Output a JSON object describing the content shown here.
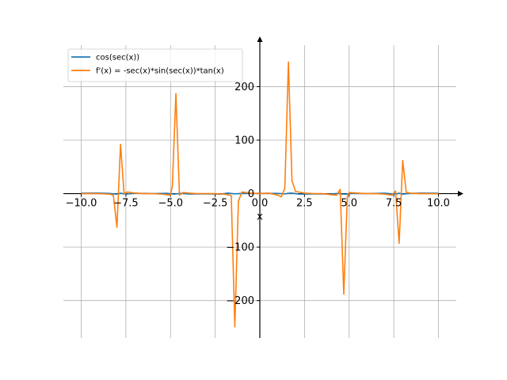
{
  "chart_data": {
    "type": "line",
    "title": "",
    "xlabel": "x",
    "ylabel": "",
    "xlim": [
      -11,
      11
    ],
    "ylim": [
      -270,
      285
    ],
    "grid": true,
    "legend_position": "top-left",
    "x_ticks": [
      -10,
      -7.5,
      -5,
      -2.5,
      0,
      2.5,
      5,
      7.5,
      10
    ],
    "x_tick_labels": [
      "−10.0",
      "−7.5",
      "−5.0",
      "−2.5",
      "0.0",
      "2.5",
      "5.0",
      "7.5",
      "10.0"
    ],
    "y_ticks": [
      -200,
      -100,
      0,
      100,
      200
    ],
    "y_tick_labels": [
      "−200",
      "−100",
      "0",
      "100",
      "200"
    ],
    "series": [
      {
        "name": "cos(sec(x))",
        "color": "#1f77b4",
        "x": [
          -10,
          -9,
          -8.4,
          -8.0,
          -7.8,
          -7.5,
          -7,
          -6,
          -5.2,
          -4.8,
          -4.4,
          -4,
          -3,
          -2.2,
          -1.8,
          -1.4,
          -1.0,
          0,
          1.0,
          1.4,
          1.6,
          1.8,
          2.2,
          3,
          4,
          4.4,
          4.6,
          4.8,
          5.2,
          6,
          7,
          7.6,
          7.8,
          8.0,
          8.4,
          9,
          10
        ],
        "y": [
          0.8,
          0.9,
          0.3,
          -0.9,
          0.7,
          -0.9,
          0.8,
          0.1,
          0.5,
          -0.9,
          0.6,
          -0.7,
          -0.6,
          -0.9,
          0.9,
          -0.4,
          0.3,
          0.5,
          0.3,
          -0.4,
          0.6,
          0.9,
          -0.9,
          -0.6,
          -0.7,
          0.6,
          -0.8,
          -0.9,
          0.5,
          0.1,
          0.8,
          -0.9,
          0.7,
          -0.9,
          0.3,
          0.9,
          0.8
        ]
      },
      {
        "name": "f'(x) = -sec(x)*sin(sec(x))*tan(x)",
        "color": "#ff7f0e",
        "x": [
          -10,
          -9,
          -8.4,
          -8.2,
          -8.0,
          -7.8,
          -7.6,
          -7.4,
          -7.0,
          -6.5,
          -6,
          -5.5,
          -5.0,
          -4.9,
          -4.7,
          -4.5,
          -4.3,
          -4.0,
          -3.5,
          -3,
          -2.5,
          -2.0,
          -1.8,
          -1.6,
          -1.4,
          -1.2,
          -1.0,
          -0.5,
          0,
          0.5,
          1.0,
          1.2,
          1.4,
          1.6,
          1.8,
          2.0,
          2.5,
          3,
          3.5,
          4.0,
          4.3,
          4.5,
          4.7,
          4.9,
          5.0,
          5.5,
          6,
          6.5,
          7.0,
          7.4,
          7.6,
          7.8,
          8.0,
          8.2,
          8.4,
          9,
          10
        ],
        "y": [
          0,
          0,
          -1,
          -3,
          -63,
          92,
          0,
          3,
          1,
          0,
          0,
          -1,
          -3,
          14,
          187,
          -3,
          2,
          1,
          0,
          0,
          0,
          -1,
          -2,
          -4,
          -249,
          -14,
          3,
          1,
          0,
          1,
          -3,
          -6,
          10,
          246,
          24,
          4,
          1,
          0,
          0,
          -2,
          -3,
          8,
          -188,
          -5,
          2,
          1,
          0,
          0,
          -1,
          -3,
          5,
          -93,
          62,
          2,
          1,
          0,
          0
        ]
      }
    ]
  }
}
